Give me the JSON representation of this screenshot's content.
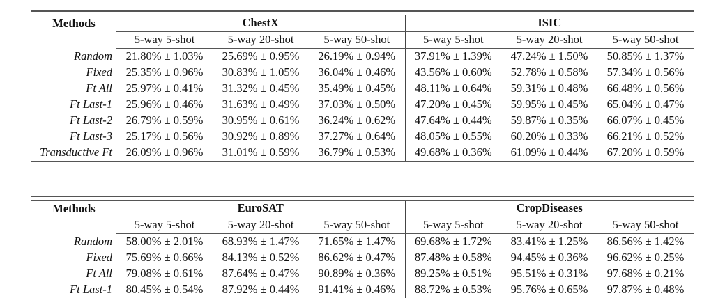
{
  "tables": [
    {
      "methods_header": "Methods",
      "datasets": [
        "ChestX",
        "ISIC"
      ],
      "settings": [
        "5-way 5-shot",
        "5-way 20-shot",
        "5-way 50-shot"
      ],
      "rows": [
        {
          "method": "Random",
          "values": [
            "21.80% ± 1.03%",
            "25.69% ± 0.95%",
            "26.19% ± 0.94%",
            "37.91% ± 1.39%",
            "47.24% ± 1.50%",
            "50.85% ± 1.37%"
          ]
        },
        {
          "method": "Fixed",
          "values": [
            "25.35% ± 0.96%",
            "30.83% ± 1.05%",
            "36.04% ± 0.46%",
            "43.56% ± 0.60%",
            "52.78% ± 0.58%",
            "57.34% ± 0.56%"
          ]
        },
        {
          "method": "Ft All",
          "values": [
            "25.97% ± 0.41%",
            "31.32% ± 0.45%",
            "35.49% ± 0.45%",
            "48.11% ± 0.64%",
            "59.31% ± 0.48%",
            "66.48% ± 0.56%"
          ]
        },
        {
          "method": "Ft Last-1",
          "values": [
            "25.96% ± 0.46%",
            "31.63% ± 0.49%",
            "37.03% ± 0.50%",
            "47.20% ± 0.45%",
            "59.95% ± 0.45%",
            "65.04% ± 0.47%"
          ]
        },
        {
          "method": "Ft Last-2",
          "values": [
            "26.79% ± 0.59%",
            "30.95% ± 0.61%",
            "36.24% ± 0.62%",
            "47.64% ± 0.44%",
            "59.87% ± 0.35%",
            "66.07% ± 0.45%"
          ]
        },
        {
          "method": "Ft Last-3",
          "values": [
            "25.17% ± 0.56%",
            "30.92% ± 0.89%",
            "37.27% ± 0.64%",
            "48.05% ± 0.55%",
            "60.20% ± 0.33%",
            "66.21% ± 0.52%"
          ]
        },
        {
          "method": "Transductive Ft",
          "values": [
            "26.09% ± 0.96%",
            "31.01% ± 0.59%",
            "36.79% ± 0.53%",
            "49.68% ± 0.36%",
            "61.09% ± 0.44%",
            "67.20% ± 0.59%"
          ]
        }
      ]
    },
    {
      "methods_header": "Methods",
      "datasets": [
        "EuroSAT",
        "CropDiseases"
      ],
      "settings": [
        "5-way 5-shot",
        "5-way 20-shot",
        "5-way 50-shot"
      ],
      "rows": [
        {
          "method": "Random",
          "values": [
            "58.00% ± 2.01%",
            "68.93% ± 1.47%",
            "71.65% ± 1.47%",
            "69.68% ± 1.72%",
            "83.41% ± 1.25%",
            "86.56% ± 1.42%"
          ]
        },
        {
          "method": "Fixed",
          "values": [
            "75.69% ± 0.66%",
            "84.13% ± 0.52%",
            "86.62% ± 0.47%",
            "87.48% ± 0.58%",
            "94.45% ± 0.36%",
            "96.62% ± 0.25%"
          ]
        },
        {
          "method": "Ft All",
          "values": [
            "79.08% ± 0.61%",
            "87.64% ± 0.47%",
            "90.89% ± 0.36%",
            "89.25% ± 0.51%",
            "95.51% ± 0.31%",
            "97.68% ± 0.21%"
          ]
        },
        {
          "method": "Ft Last-1",
          "values": [
            "80.45% ± 0.54%",
            "87.92% ± 0.44%",
            "91.41% ± 0.46%",
            "88.72% ± 0.53%",
            "95.76% ± 0.65%",
            "97.87% ± 0.48%"
          ]
        }
      ]
    }
  ]
}
